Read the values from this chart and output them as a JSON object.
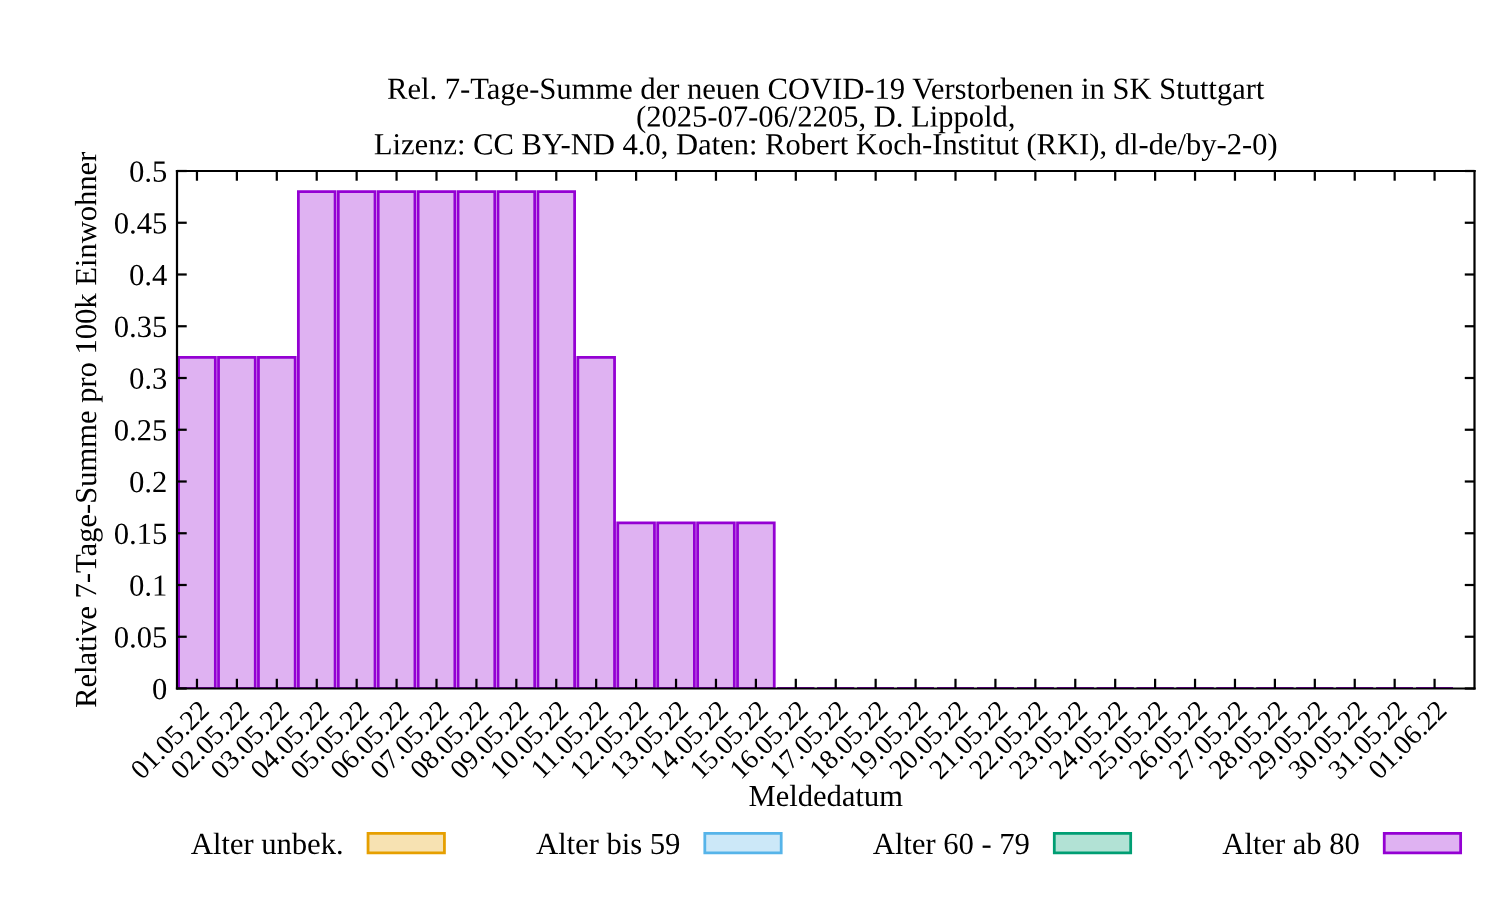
{
  "chart_data": {
    "type": "bar",
    "title": "Rel. 7-Tage-Summe der neuen COVID-19 Verstorbenen in SK Stuttgart\n(2025-07-06/2205, D. Lippold,\nLizenz: CC BY-ND 4.0, Daten: Robert Koch-Institut (RKI), dl-de/by-2-0)",
    "xlabel": "Meldedatum",
    "ylabel": "Relative 7-Tage-Summe pro 100k Einwohner",
    "categories": [
      "01.05.22",
      "02.05.22",
      "03.05.22",
      "04.05.22",
      "05.05.22",
      "06.05.22",
      "07.05.22",
      "08.05.22",
      "09.05.22",
      "10.05.22",
      "11.05.22",
      "12.05.22",
      "13.05.22",
      "14.05.22",
      "15.05.22",
      "16.05.22",
      "17.05.22",
      "18.05.22",
      "19.05.22",
      "20.05.22",
      "21.05.22",
      "22.05.22",
      "23.05.22",
      "24.05.22",
      "25.05.22",
      "26.05.22",
      "27.05.22",
      "28.05.22",
      "29.05.22",
      "30.05.22",
      "31.05.22",
      "01.06.22"
    ],
    "series": [
      {
        "name": "Alter unbek.",
        "color": "#e69f00",
        "values": [
          0,
          0,
          0,
          0,
          0,
          0,
          0,
          0,
          0,
          0,
          0,
          0,
          0,
          0,
          0,
          0,
          0,
          0,
          0,
          0,
          0,
          0,
          0,
          0,
          0,
          0,
          0,
          0,
          0,
          0,
          0,
          0
        ]
      },
      {
        "name": "Alter bis 59",
        "color": "#56b4e9",
        "values": [
          0,
          0,
          0,
          0,
          0,
          0,
          0,
          0,
          0,
          0,
          0,
          0,
          0,
          0,
          0,
          0,
          0,
          0,
          0,
          0,
          0,
          0,
          0,
          0,
          0,
          0,
          0,
          0,
          0,
          0,
          0,
          0
        ]
      },
      {
        "name": "Alter 60 - 79",
        "color": "#009e73",
        "values": [
          0,
          0,
          0,
          0,
          0,
          0,
          0,
          0,
          0,
          0,
          0,
          0,
          0,
          0,
          0,
          0,
          0,
          0,
          0,
          0,
          0,
          0,
          0,
          0,
          0,
          0,
          0,
          0,
          0,
          0,
          0,
          0
        ]
      },
      {
        "name": "Alter ab 80",
        "color": "#9400d3",
        "values": [
          0.32,
          0.32,
          0.32,
          0.48,
          0.48,
          0.48,
          0.48,
          0.48,
          0.48,
          0.48,
          0.32,
          0.16,
          0.16,
          0.16,
          0.16,
          0,
          0,
          0,
          0,
          0,
          0,
          0,
          0,
          0,
          0,
          0,
          0,
          0,
          0,
          0,
          0,
          0
        ]
      }
    ],
    "ylim": [
      0,
      0.5
    ],
    "yticks": [
      0,
      0.05,
      0.1,
      0.15,
      0.2,
      0.25,
      0.3,
      0.35,
      0.4,
      0.45,
      0.5
    ],
    "grid": false,
    "legend": "bottom"
  }
}
